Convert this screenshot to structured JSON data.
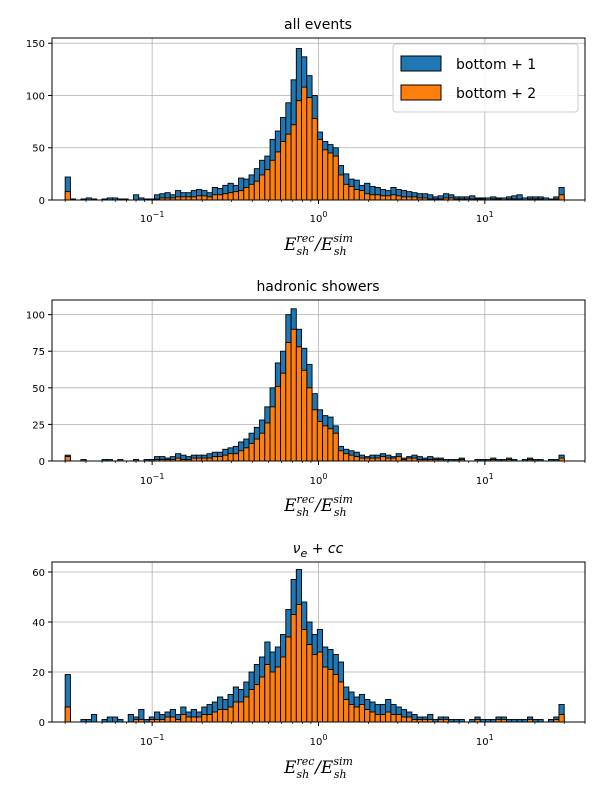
{
  "colors": {
    "bottom1": "#1f77b4",
    "bottom2": "#ff7f0e",
    "edge": "#000000",
    "grid": "#b0b0b0"
  },
  "chart_data": [
    {
      "type": "bar",
      "title": "all events",
      "xlabel": "E_sh^rec / E_sh^sim",
      "xscale": "log",
      "xlim": [
        0.025,
        40
      ],
      "ylim": [
        0,
        155
      ],
      "yticks": [
        0,
        50,
        100,
        150
      ],
      "xticks": [
        "10^-1",
        "10^0",
        "10^1"
      ],
      "grid": true,
      "legend": {
        "placement": "top-right",
        "entries": [
          "bottom + 1",
          "bottom + 2"
        ]
      },
      "series": [
        {
          "name": "bottom + 1",
          "values": [
            22,
            1,
            0,
            1,
            2,
            1,
            0,
            1,
            2,
            2,
            1,
            1,
            0,
            5,
            2,
            1,
            1,
            5,
            6,
            7,
            5,
            9,
            7,
            7,
            9,
            10,
            9,
            7,
            12,
            11,
            14,
            16,
            14,
            21,
            20,
            24,
            30,
            38,
            42,
            58,
            66,
            79,
            93,
            115,
            145,
            137,
            119,
            100,
            65,
            56,
            53,
            50,
            33,
            25,
            20,
            19,
            14,
            16,
            13,
            12,
            10,
            9,
            12,
            10,
            9,
            8,
            7,
            6,
            6,
            5,
            3,
            4,
            6,
            5,
            3,
            3,
            3,
            4,
            2,
            2,
            2,
            3,
            2,
            2,
            3,
            4,
            5,
            2,
            3,
            3,
            3,
            2,
            1,
            3,
            12
          ]
        },
        {
          "name": "bottom + 2",
          "values": [
            8,
            0,
            0,
            0,
            0,
            0,
            0,
            0,
            0,
            0,
            1,
            0,
            0,
            0,
            0,
            0,
            0,
            1,
            2,
            2,
            2,
            3,
            3,
            3,
            3,
            4,
            4,
            3,
            5,
            5,
            6,
            7,
            8,
            9,
            12,
            15,
            18,
            24,
            29,
            38,
            46,
            56,
            63,
            72,
            95,
            108,
            98,
            78,
            58,
            48,
            45,
            42,
            24,
            15,
            13,
            10,
            9,
            6,
            5,
            5,
            4,
            4,
            5,
            4,
            3,
            3,
            3,
            2,
            2,
            1,
            1,
            1,
            2,
            2,
            1,
            1,
            1,
            1,
            1,
            1,
            0,
            1,
            1,
            0,
            1,
            1,
            1,
            0,
            1,
            1,
            1,
            0,
            0,
            1,
            5
          ]
        }
      ]
    },
    {
      "type": "bar",
      "title": "hadronic showers",
      "xlabel": "E_sh^rec / E_sh^sim",
      "xscale": "log",
      "xlim": [
        0.025,
        40
      ],
      "ylim": [
        0,
        110
      ],
      "yticks": [
        0,
        25,
        50,
        75,
        100
      ],
      "xticks": [
        "10^-1",
        "10^0",
        "10^1"
      ],
      "grid": true,
      "series": [
        {
          "name": "bottom + 1",
          "values": [
            4,
            0,
            0,
            1,
            0,
            0,
            0,
            1,
            1,
            0,
            1,
            0,
            0,
            1,
            0,
            1,
            1,
            3,
            3,
            2,
            3,
            5,
            4,
            3,
            4,
            4,
            4,
            5,
            6,
            6,
            8,
            9,
            10,
            13,
            15,
            19,
            23,
            28,
            37,
            50,
            67,
            75,
            100,
            104,
            90,
            77,
            66,
            46,
            35,
            31,
            30,
            24,
            10,
            8,
            7,
            6,
            4,
            3,
            4,
            4,
            5,
            4,
            3,
            5,
            2,
            3,
            4,
            3,
            2,
            3,
            2,
            2,
            1,
            1,
            1,
            2,
            0,
            0,
            1,
            1,
            1,
            2,
            1,
            1,
            2,
            1,
            0,
            1,
            2,
            1,
            1,
            0,
            1,
            1,
            4
          ]
        },
        {
          "name": "bottom + 2",
          "values": [
            3,
            0,
            0,
            0,
            0,
            0,
            0,
            0,
            0,
            0,
            0,
            0,
            0,
            0,
            0,
            0,
            0,
            1,
            1,
            1,
            1,
            2,
            1,
            1,
            2,
            2,
            2,
            2,
            3,
            3,
            4,
            5,
            5,
            7,
            9,
            12,
            15,
            19,
            26,
            37,
            51,
            60,
            81,
            90,
            78,
            62,
            50,
            35,
            27,
            24,
            22,
            19,
            7,
            5,
            4,
            3,
            2,
            2,
            2,
            2,
            3,
            2,
            2,
            3,
            1,
            2,
            2,
            1,
            1,
            1,
            1,
            1,
            0,
            0,
            0,
            1,
            0,
            0,
            0,
            0,
            0,
            1,
            0,
            0,
            1,
            0,
            0,
            0,
            1,
            0,
            0,
            0,
            0,
            0,
            2
          ]
        }
      ]
    },
    {
      "type": "bar",
      "title": "ν_e + cc",
      "xlabel": "E_sh^rec / E_sh^sim",
      "xscale": "log",
      "xlim": [
        0.025,
        40
      ],
      "ylim": [
        0,
        64
      ],
      "yticks": [
        0,
        20,
        40,
        60
      ],
      "xticks": [
        "10^-1",
        "10^0",
        "10^1"
      ],
      "grid": true,
      "series": [
        {
          "name": "bottom + 1",
          "values": [
            19,
            0,
            0,
            1,
            1,
            3,
            0,
            1,
            2,
            2,
            1,
            0,
            3,
            2,
            5,
            1,
            2,
            4,
            3,
            4,
            5,
            3,
            6,
            4,
            5,
            4,
            6,
            7,
            8,
            10,
            9,
            11,
            14,
            13,
            16,
            20,
            23,
            26,
            32,
            28,
            30,
            35,
            45,
            57,
            61,
            48,
            40,
            35,
            37,
            30,
            29,
            27,
            24,
            14,
            12,
            10,
            11,
            9,
            8,
            7,
            7,
            9,
            7,
            6,
            5,
            4,
            3,
            2,
            2,
            3,
            1,
            2,
            2,
            1,
            1,
            1,
            0,
            1,
            2,
            1,
            1,
            1,
            2,
            2,
            1,
            1,
            1,
            1,
            2,
            1,
            1,
            0,
            1,
            2,
            7
          ]
        },
        {
          "name": "bottom + 2",
          "values": [
            6,
            0,
            0,
            0,
            0,
            0,
            0,
            0,
            0,
            0,
            0,
            0,
            0,
            1,
            1,
            0,
            1,
            1,
            1,
            2,
            2,
            1,
            3,
            2,
            2,
            2,
            3,
            3,
            4,
            5,
            5,
            6,
            8,
            8,
            10,
            13,
            15,
            18,
            23,
            20,
            22,
            26,
            34,
            43,
            47,
            37,
            31,
            27,
            28,
            22,
            21,
            19,
            16,
            9,
            7,
            6,
            7,
            5,
            4,
            3,
            3,
            4,
            3,
            3,
            2,
            2,
            1,
            1,
            1,
            1,
            0,
            1,
            1,
            0,
            0,
            0,
            0,
            0,
            1,
            0,
            0,
            0,
            1,
            1,
            0,
            0,
            0,
            0,
            1,
            0,
            0,
            0,
            0,
            1,
            3
          ]
        }
      ]
    }
  ]
}
